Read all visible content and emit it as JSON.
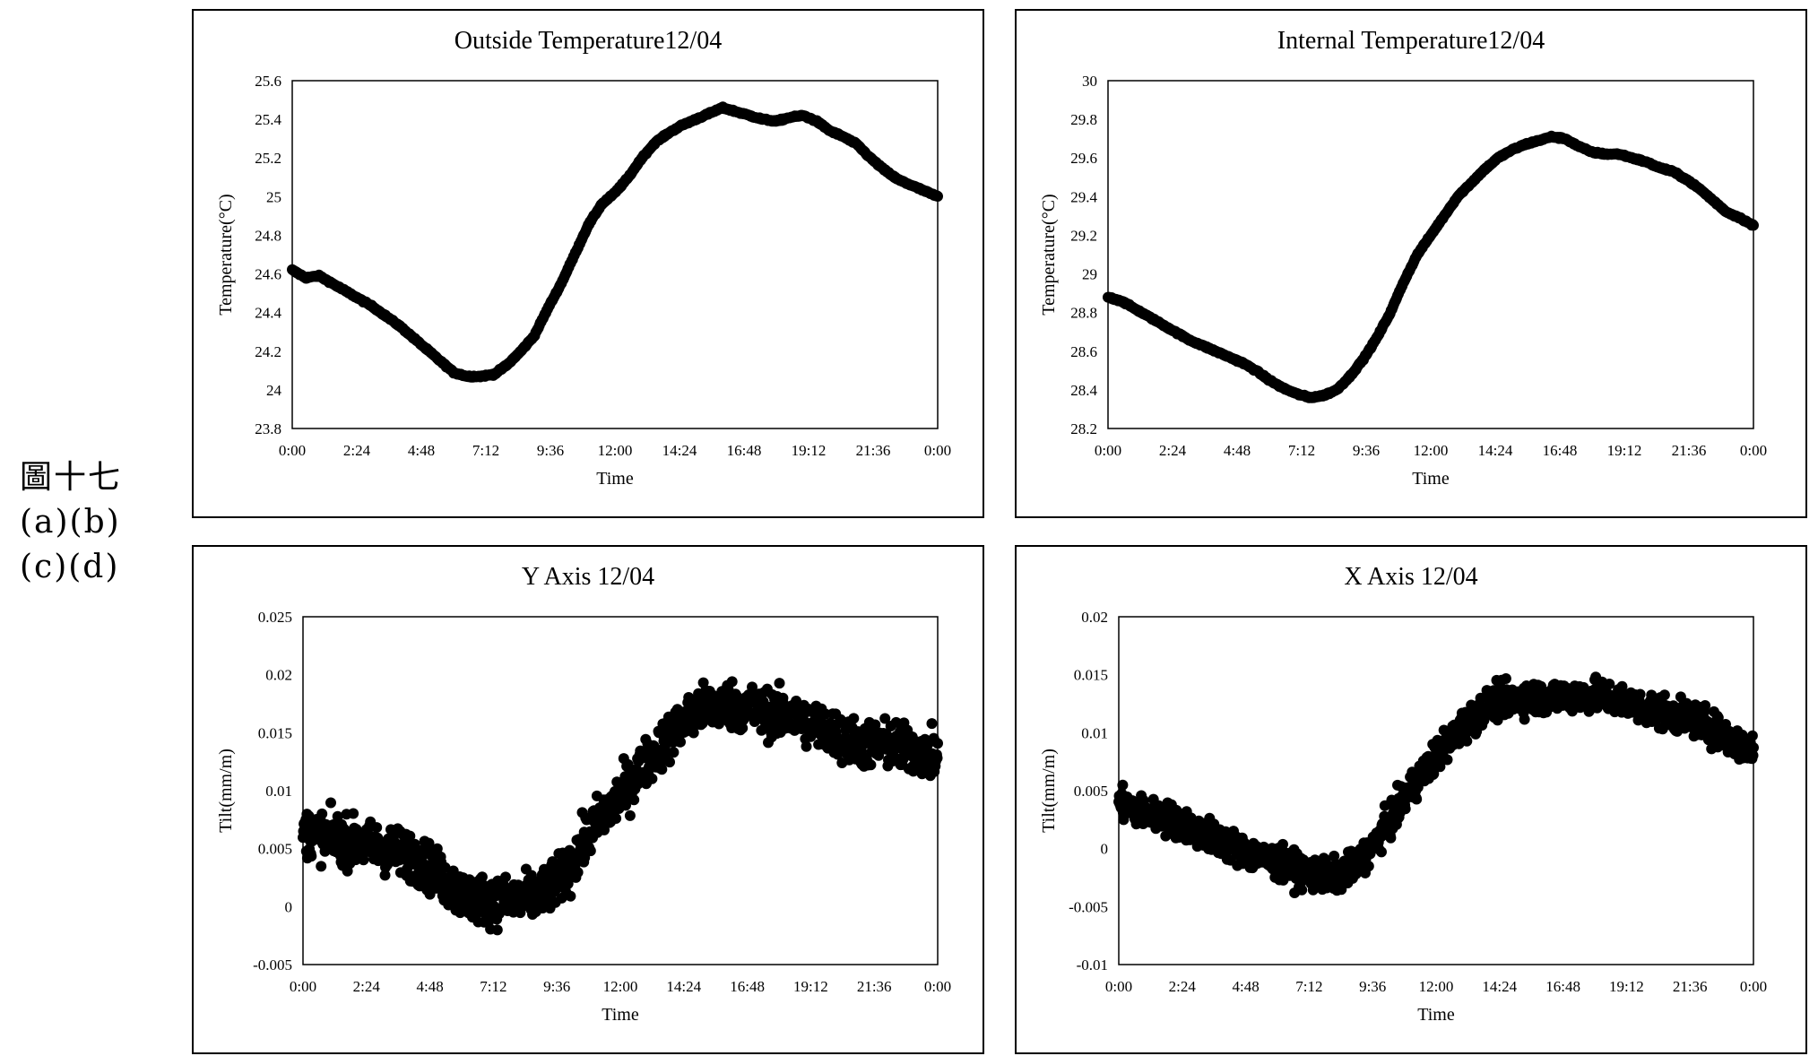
{
  "caption": {
    "line1": "圖十七",
    "line2": "(a)(b)",
    "line3": "(c)(d)"
  },
  "colors": {
    "marker": "#000000",
    "frame": "#000000",
    "background": "#ffffff"
  },
  "chart_data": [
    {
      "id": "outside-temperature",
      "type": "scatter",
      "title": "Outside Temperature12/04",
      "xlabel": "Time",
      "ylabel": "Temperature(°C)",
      "xlim": [
        0,
        24
      ],
      "ylim": [
        23.8,
        25.6
      ],
      "xticks": [
        "0:00",
        "2:24",
        "4:48",
        "7:12",
        "9:36",
        "12:00",
        "14:24",
        "16:48",
        "19:12",
        "21:36",
        "0:00"
      ],
      "yticks": [
        "23.8",
        "24",
        "24.2",
        "24.4",
        "24.6",
        "24.8",
        "25",
        "25.2",
        "25.4",
        "25.6"
      ],
      "ytick_values": [
        23.8,
        24,
        24.2,
        24.4,
        24.6,
        24.8,
        25,
        25.2,
        25.4,
        25.6
      ],
      "points": [
        [
          0,
          24.62
        ],
        [
          0.5,
          24.58
        ],
        [
          1,
          24.59
        ],
        [
          1.5,
          24.55
        ],
        [
          2,
          24.51
        ],
        [
          2.5,
          24.47
        ],
        [
          3,
          24.43
        ],
        [
          3.5,
          24.38
        ],
        [
          4,
          24.33
        ],
        [
          4.5,
          24.27
        ],
        [
          5,
          24.21
        ],
        [
          5.5,
          24.15
        ],
        [
          6,
          24.09
        ],
        [
          6.5,
          24.07
        ],
        [
          7,
          24.07
        ],
        [
          7.5,
          24.08
        ],
        [
          8,
          24.13
        ],
        [
          8.5,
          24.2
        ],
        [
          9,
          24.28
        ],
        [
          9.5,
          24.42
        ],
        [
          10,
          24.55
        ],
        [
          10.5,
          24.7
        ],
        [
          11,
          24.85
        ],
        [
          11.5,
          24.96
        ],
        [
          12,
          25.02
        ],
        [
          12.5,
          25.1
        ],
        [
          13,
          25.2
        ],
        [
          13.5,
          25.28
        ],
        [
          14,
          25.33
        ],
        [
          14.5,
          25.37
        ],
        [
          15,
          25.4
        ],
        [
          15.5,
          25.43
        ],
        [
          16,
          25.46
        ],
        [
          16.5,
          25.44
        ],
        [
          17,
          25.42
        ],
        [
          17.5,
          25.4
        ],
        [
          18,
          25.39
        ],
        [
          18.5,
          25.41
        ],
        [
          19,
          25.42
        ],
        [
          19.5,
          25.39
        ],
        [
          20,
          25.34
        ],
        [
          20.5,
          25.31
        ],
        [
          21,
          25.27
        ],
        [
          21.5,
          25.2
        ],
        [
          22,
          25.14
        ],
        [
          22.5,
          25.09
        ],
        [
          23,
          25.06
        ],
        [
          23.5,
          25.03
        ],
        [
          24,
          25.0
        ]
      ]
    },
    {
      "id": "internal-temperature",
      "type": "scatter",
      "title": "Internal Temperature12/04",
      "xlabel": "Time",
      "ylabel": "Temperature(°C)",
      "xlim": [
        0,
        24
      ],
      "ylim": [
        28.2,
        30
      ],
      "xticks": [
        "0:00",
        "2:24",
        "4:48",
        "7:12",
        "9:36",
        "12:00",
        "14:24",
        "16:48",
        "19:12",
        "21:36",
        "0:00"
      ],
      "yticks": [
        "28.2",
        "28.4",
        "28.6",
        "28.8",
        "29",
        "29.2",
        "29.4",
        "29.6",
        "29.8",
        "30"
      ],
      "ytick_values": [
        28.2,
        28.4,
        28.6,
        28.8,
        29,
        29.2,
        29.4,
        29.6,
        29.8,
        30
      ],
      "points": [
        [
          0,
          28.88
        ],
        [
          0.5,
          28.86
        ],
        [
          1,
          28.82
        ],
        [
          1.5,
          28.78
        ],
        [
          2,
          28.74
        ],
        [
          2.5,
          28.7
        ],
        [
          3,
          28.66
        ],
        [
          3.5,
          28.63
        ],
        [
          4,
          28.6
        ],
        [
          4.5,
          28.57
        ],
        [
          5,
          28.54
        ],
        [
          5.5,
          28.5
        ],
        [
          6,
          28.45
        ],
        [
          6.5,
          28.41
        ],
        [
          7,
          28.38
        ],
        [
          7.5,
          28.36
        ],
        [
          8,
          28.37
        ],
        [
          8.5,
          28.4
        ],
        [
          9,
          28.47
        ],
        [
          9.5,
          28.56
        ],
        [
          10,
          28.67
        ],
        [
          10.5,
          28.8
        ],
        [
          11,
          28.96
        ],
        [
          11.5,
          29.1
        ],
        [
          12,
          29.2
        ],
        [
          12.5,
          29.3
        ],
        [
          13,
          29.4
        ],
        [
          13.5,
          29.47
        ],
        [
          14,
          29.54
        ],
        [
          14.5,
          29.6
        ],
        [
          15,
          29.64
        ],
        [
          15.5,
          29.67
        ],
        [
          16,
          29.69
        ],
        [
          16.5,
          29.71
        ],
        [
          17,
          29.7
        ],
        [
          17.5,
          29.66
        ],
        [
          18,
          29.63
        ],
        [
          18.5,
          29.62
        ],
        [
          19,
          29.62
        ],
        [
          19.5,
          29.6
        ],
        [
          20,
          29.58
        ],
        [
          20.5,
          29.55
        ],
        [
          21,
          29.53
        ],
        [
          21.5,
          29.49
        ],
        [
          22,
          29.44
        ],
        [
          22.5,
          29.38
        ],
        [
          23,
          29.32
        ],
        [
          23.5,
          29.29
        ],
        [
          24,
          29.25
        ]
      ]
    },
    {
      "id": "y-axis-tilt",
      "type": "scatter",
      "title": "Y Axis 12/04",
      "xlabel": "Time",
      "ylabel": "Tilt(mm/m)",
      "xlim": [
        0,
        24
      ],
      "ylim": [
        -0.005,
        0.025
      ],
      "xticks": [
        "0:00",
        "2:24",
        "4:48",
        "7:12",
        "9:36",
        "12:00",
        "14:24",
        "16:48",
        "19:12",
        "21:36",
        "0:00"
      ],
      "yticks": [
        "-0.005",
        "0",
        "0.005",
        "0.01",
        "0.015",
        "0.02",
        "0.025"
      ],
      "ytick_values": [
        -0.005,
        0,
        0.005,
        0.01,
        0.015,
        0.02,
        0.025
      ],
      "trend": [
        [
          0,
          0.0065
        ],
        [
          1,
          0.006
        ],
        [
          2,
          0.0055
        ],
        [
          3,
          0.005
        ],
        [
          4,
          0.0045
        ],
        [
          5,
          0.003
        ],
        [
          6,
          0.001
        ],
        [
          7,
          0.0005
        ],
        [
          8,
          0.0005
        ],
        [
          9,
          0.001
        ],
        [
          10,
          0.003
        ],
        [
          11,
          0.007
        ],
        [
          12,
          0.0095
        ],
        [
          13,
          0.0125
        ],
        [
          14,
          0.015
        ],
        [
          15,
          0.017
        ],
        [
          16,
          0.0175
        ],
        [
          17,
          0.017
        ],
        [
          18,
          0.0165
        ],
        [
          19,
          0.016
        ],
        [
          20,
          0.015
        ],
        [
          21,
          0.014
        ],
        [
          22,
          0.014
        ],
        [
          23,
          0.0135
        ],
        [
          24,
          0.013
        ]
      ],
      "spread": 0.0022
    },
    {
      "id": "x-axis-tilt",
      "type": "scatter",
      "title": "X Axis 12/04",
      "xlabel": "Time",
      "ylabel": "Tilt(mm/m)",
      "xlim": [
        0,
        24
      ],
      "ylim": [
        -0.01,
        0.02
      ],
      "xticks": [
        "0:00",
        "2:24",
        "4:48",
        "7:12",
        "9:36",
        "12:00",
        "14:24",
        "16:48",
        "19:12",
        "21:36",
        "0:00"
      ],
      "yticks": [
        "-0.01",
        "-0.005",
        "0",
        "0.005",
        "0.01",
        "0.015",
        "0.02"
      ],
      "ytick_values": [
        -0.01,
        -0.005,
        0,
        0.005,
        0.01,
        0.015,
        0.02
      ],
      "trend": [
        [
          0,
          0.004
        ],
        [
          1,
          0.003
        ],
        [
          2,
          0.0025
        ],
        [
          3,
          0.0015
        ],
        [
          4,
          0.0005
        ],
        [
          5,
          -0.0005
        ],
        [
          6,
          -0.0012
        ],
        [
          7,
          -0.002
        ],
        [
          8,
          -0.0025
        ],
        [
          9,
          -0.0015
        ],
        [
          10,
          0.0015
        ],
        [
          11,
          0.005
        ],
        [
          12,
          0.008
        ],
        [
          13,
          0.0105
        ],
        [
          14,
          0.0125
        ],
        [
          15,
          0.013
        ],
        [
          16,
          0.013
        ],
        [
          17,
          0.0132
        ],
        [
          18,
          0.0132
        ],
        [
          19,
          0.0128
        ],
        [
          20,
          0.012
        ],
        [
          21,
          0.0115
        ],
        [
          22,
          0.011
        ],
        [
          23,
          0.0095
        ],
        [
          24,
          0.0085
        ]
      ],
      "spread": 0.0015
    }
  ]
}
